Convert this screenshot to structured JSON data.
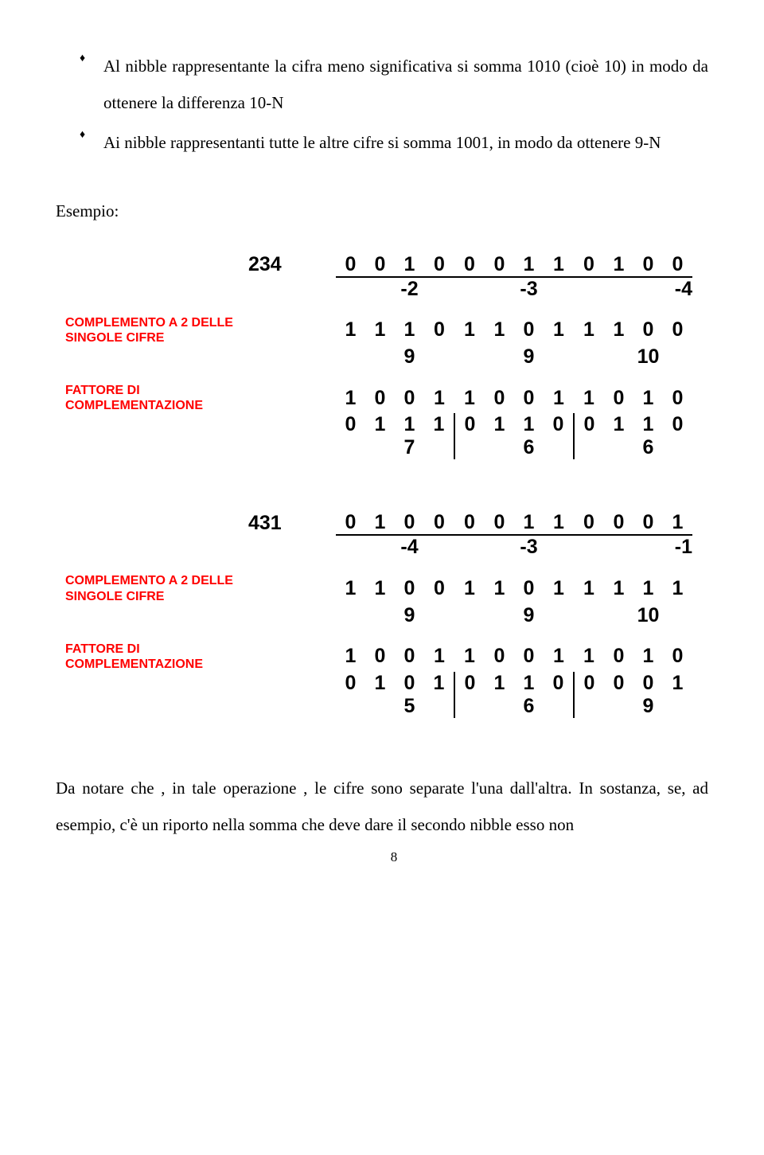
{
  "bullets": {
    "b1": "Al nibble rappresentante la cifra meno significativa si somma 1010 (cioè 10) in modo da ottenere la differenza 10-N",
    "b2": "Ai nibble rappresentanti tutte le altre cifre si somma 1001, in modo da ottenere 9-N"
  },
  "esempio": "Esempio:",
  "labels": {
    "compl": "COMPLEMENTO A 2 DELLE SINGOLE CIFRE",
    "fatt": "FATTORE DI COMPLEMENTAZIONE"
  },
  "block1": {
    "num": "234",
    "r1": [
      "0",
      "0",
      "1",
      "0",
      "0",
      "0",
      "1",
      "1",
      "0",
      "1",
      "0",
      "0"
    ],
    "neg": [
      "-2",
      "-3",
      "-4"
    ],
    "r_compl": [
      "1",
      "1",
      "1",
      "0",
      "1",
      "1",
      "0",
      "1",
      "1",
      "1",
      "0",
      "0"
    ],
    "r_compl_dec": [
      "9",
      "9",
      "10"
    ],
    "r_fatt": [
      "1",
      "0",
      "0",
      "1",
      "1",
      "0",
      "0",
      "1",
      "1",
      "0",
      "1",
      "0"
    ],
    "r_sum": [
      "0",
      "1",
      "1",
      "1",
      "0",
      "1",
      "1",
      "0",
      "0",
      "1",
      "1",
      "0"
    ],
    "r_sum_dec": [
      "7",
      "6",
      "6"
    ]
  },
  "block2": {
    "num": "431",
    "r1": [
      "0",
      "1",
      "0",
      "0",
      "0",
      "0",
      "1",
      "1",
      "0",
      "0",
      "0",
      "1"
    ],
    "neg": [
      "-4",
      "-3",
      "-1"
    ],
    "r_compl": [
      "1",
      "1",
      "0",
      "0",
      "1",
      "1",
      "0",
      "1",
      "1",
      "1",
      "1",
      "1"
    ],
    "r_compl_dec": [
      "9",
      "9",
      "10"
    ],
    "r_fatt": [
      "1",
      "0",
      "0",
      "1",
      "1",
      "0",
      "0",
      "1",
      "1",
      "0",
      "1",
      "0"
    ],
    "r_sum": [
      "0",
      "1",
      "0",
      "1",
      "0",
      "1",
      "1",
      "0",
      "0",
      "0",
      "0",
      "1"
    ],
    "r_sum_dec": [
      "5",
      "6",
      "9"
    ]
  },
  "footer": "Da notare che , in tale operazione , le cifre sono separate l'una dall'altra. In sostanza, se, ad esempio, c'è un riporto nella somma che deve dare il secondo nibble esso non",
  "page": "8"
}
